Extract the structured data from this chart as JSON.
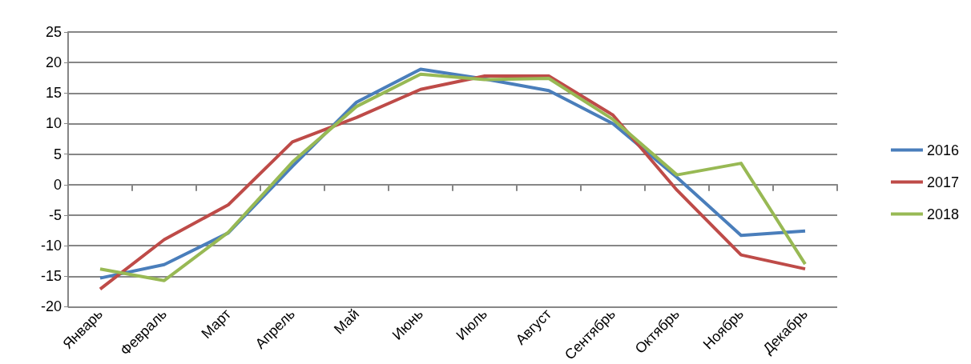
{
  "chart_data": {
    "type": "line",
    "categories": [
      "Январь",
      "Февраль",
      "Март",
      "Апрель",
      "Май",
      "Июнь",
      "Июль",
      "Август",
      "Сентябрь",
      "Октябрь",
      "Ноябрь",
      "Декабрь"
    ],
    "series": [
      {
        "name": "2016",
        "color": "#4a7ebb",
        "values": [
          -15.3,
          -13.1,
          -7.9,
          3,
          13.5,
          18.9,
          17.3,
          15.4,
          10,
          1.2,
          -8.3,
          -7.6
        ]
      },
      {
        "name": "2017",
        "color": "#be4b48",
        "values": [
          -17.1,
          -9,
          -3.3,
          7,
          11,
          15.6,
          17.8,
          17.8,
          11.4,
          -0.9,
          -11.5,
          -13.8
        ]
      },
      {
        "name": "2018",
        "color": "#98b954",
        "values": [
          -13.8,
          -15.7,
          -7.8,
          3.7,
          12.8,
          18.1,
          17.2,
          17.4,
          10.7,
          1.6,
          3.5,
          -13
        ]
      }
    ],
    "ylim": [
      -20,
      25
    ],
    "yticks": [
      -20,
      -15,
      -10,
      -5,
      0,
      5,
      10,
      15,
      20,
      25
    ],
    "grid": "y",
    "legend": "right",
    "marker": "none",
    "line_style": "solid"
  }
}
